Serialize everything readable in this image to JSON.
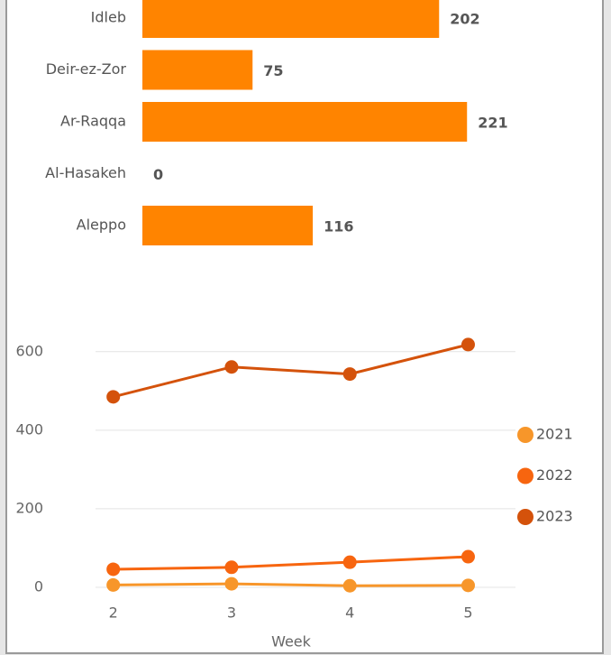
{
  "chart_data": [
    {
      "type": "hbar",
      "categories": [
        "Idleb",
        "Deir-ez-Zor",
        "Ar-Raqqa",
        "Al-Hasakeh",
        "Aleppo"
      ],
      "values": [
        202,
        75,
        221,
        0,
        116
      ],
      "color": "#ff8400"
    },
    {
      "type": "line",
      "xlabel": "Week",
      "x": [
        2,
        3,
        4,
        5
      ],
      "xlim": [
        1.85,
        5.4
      ],
      "xticks": [
        2,
        3,
        4,
        5
      ],
      "ylim": [
        0,
        650
      ],
      "yticks": [
        0,
        200,
        400,
        600
      ],
      "grid": true,
      "legend": "right",
      "series": [
        {
          "name": "2021",
          "color": "#f7962a",
          "values": [
            6,
            9,
            4,
            5
          ]
        },
        {
          "name": "2022",
          "color": "#f7650f",
          "values": [
            46,
            51,
            64,
            78
          ]
        },
        {
          "name": "2023",
          "color": "#d4520b",
          "values": [
            485,
            561,
            543,
            618
          ]
        }
      ]
    }
  ]
}
